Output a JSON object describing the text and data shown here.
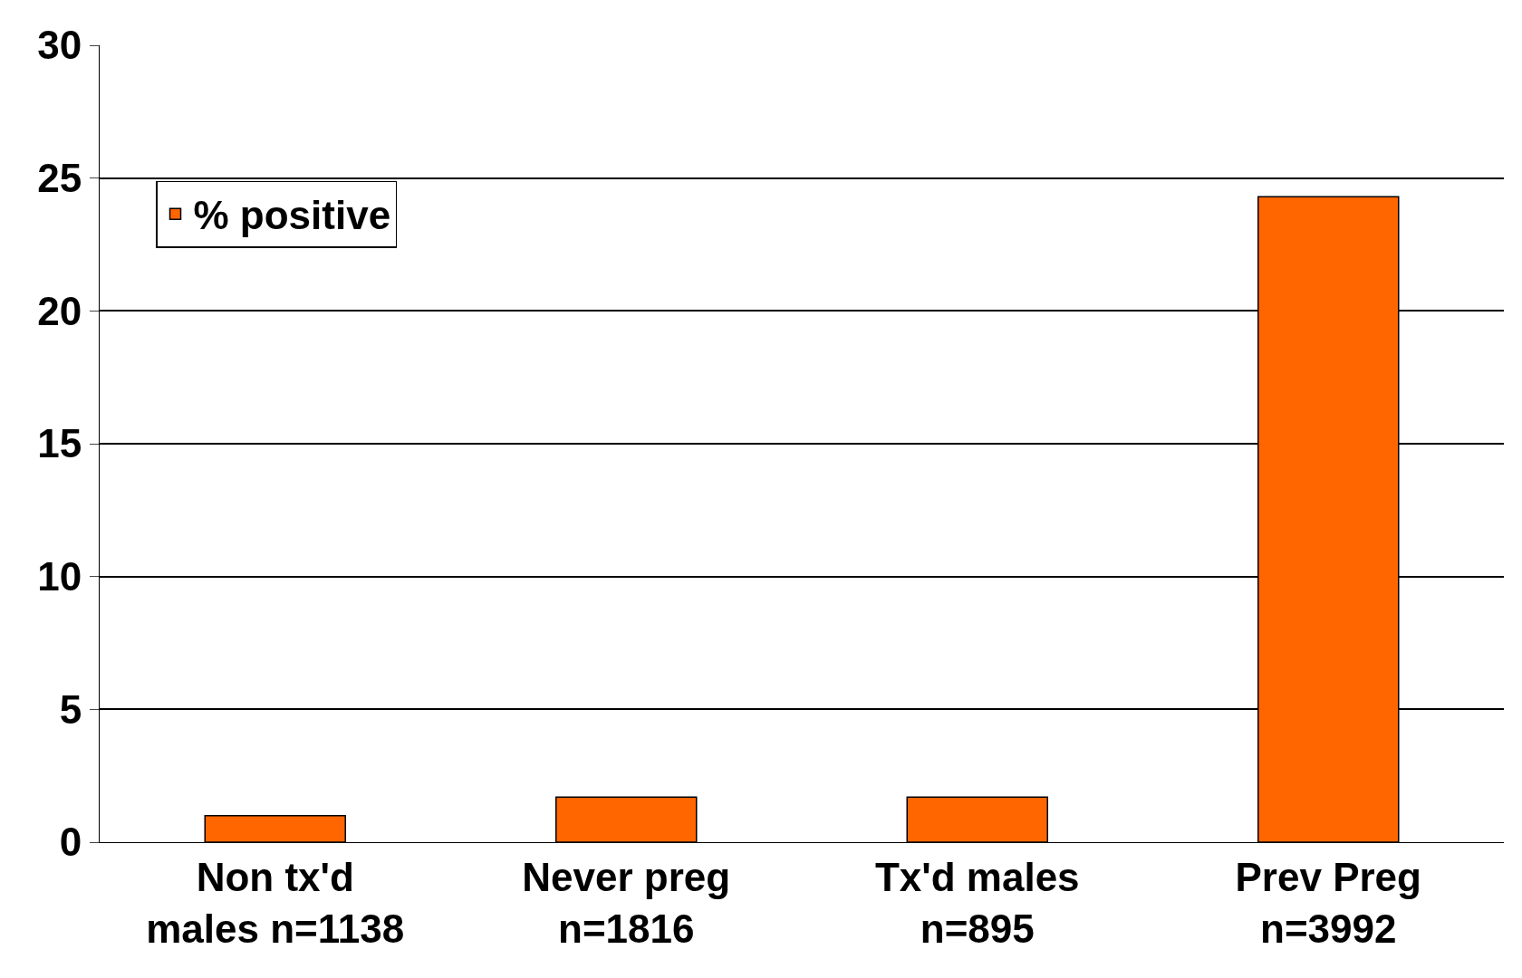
{
  "chart_data": {
    "type": "bar",
    "categories": [
      "Non tx'd\nmales n=1138",
      "Never preg\nn=1816",
      "Tx'd males\nn=895",
      "Prev Preg\nn=3992"
    ],
    "series": [
      {
        "name": "% positive",
        "color": "#ff6600",
        "values": [
          1.0,
          1.7,
          1.7,
          24.3
        ]
      }
    ],
    "ylim": [
      0,
      30
    ],
    "yticks": [
      0,
      5,
      10,
      15,
      20,
      25,
      30
    ],
    "grid": "y",
    "legend": "top left"
  }
}
